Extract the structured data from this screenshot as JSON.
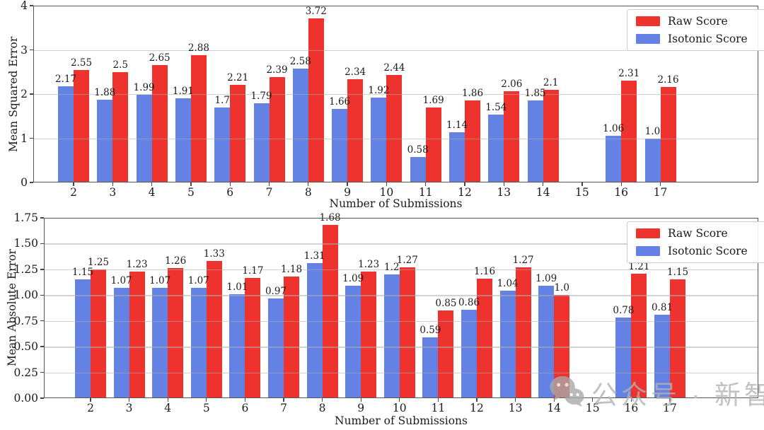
{
  "figure": {
    "background": "#ffffff"
  },
  "colors": {
    "raw": "#ee332e",
    "isotonic": "#6482e3",
    "grid": "#afafaf",
    "frame": "#555555",
    "text": "#1b1b1b",
    "legend_border": "#cccccc",
    "watermark": "#b3b3b3"
  },
  "watermark": {
    "icon": "wechat-icon",
    "text": "公众号 · 新智元"
  },
  "chart_data": [
    {
      "type": "bar",
      "title": "",
      "xlabel": "Number of Submissions",
      "ylabel": "Mean Squared Error",
      "categories": [
        "2",
        "3",
        "4",
        "5",
        "6",
        "7",
        "8",
        "9",
        "10",
        "11",
        "12",
        "13",
        "14",
        "15",
        "16",
        "17"
      ],
      "ylim": [
        0,
        4
      ],
      "yticks": [
        "0",
        "1",
        "2",
        "3",
        "4"
      ],
      "grid": true,
      "legend": {
        "position": "top-right",
        "entries": [
          {
            "label": "Raw Score",
            "color_key": "raw"
          },
          {
            "label": "Isotonic Score",
            "color_key": "isotonic"
          }
        ]
      },
      "series": [
        {
          "name": "Isotonic Score",
          "color_key": "isotonic",
          "values": [
            2.17,
            1.88,
            1.99,
            1.91,
            1.7,
            1.79,
            2.58,
            1.66,
            1.92,
            0.58,
            1.14,
            1.54,
            1.85,
            null,
            1.06,
            1.0
          ],
          "labels": [
            "2.17",
            "1.88",
            "1.99",
            "1.91",
            "1.7",
            "1.79",
            "2.58",
            "1.66",
            "1.92",
            "0.58",
            "1.14",
            "1.54",
            "1.85",
            "",
            "1.06",
            "1.0"
          ]
        },
        {
          "name": "Raw Score",
          "color_key": "raw",
          "values": [
            2.55,
            2.5,
            2.65,
            2.88,
            2.21,
            2.39,
            3.72,
            2.34,
            2.44,
            1.69,
            1.86,
            2.06,
            2.1,
            null,
            2.31,
            2.16
          ],
          "labels": [
            "2.55",
            "2.5",
            "2.65",
            "2.88",
            "2.21",
            "2.39",
            "3.72",
            "2.34",
            "2.44",
            "1.69",
            "1.86",
            "2.06",
            "2.1",
            "",
            "2.31",
            "2.16"
          ]
        }
      ]
    },
    {
      "type": "bar",
      "title": "",
      "xlabel": "Number of Submissions",
      "ylabel": "Mean Absolute Error",
      "categories": [
        "2",
        "3",
        "4",
        "5",
        "6",
        "7",
        "8",
        "9",
        "10",
        "11",
        "12",
        "13",
        "14",
        "15",
        "16",
        "17"
      ],
      "ylim": [
        0,
        1.75
      ],
      "yticks": [
        "0.00",
        "0.25",
        "0.50",
        "0.75",
        "1.00",
        "1.25",
        "1.50",
        "1.75"
      ],
      "grid": true,
      "legend": {
        "position": "top-right",
        "entries": [
          {
            "label": "Raw Score",
            "color_key": "raw"
          },
          {
            "label": "Isotonic Score",
            "color_key": "isotonic"
          }
        ]
      },
      "series": [
        {
          "name": "Isotonic Score",
          "color_key": "isotonic",
          "values": [
            1.15,
            1.07,
            1.07,
            1.07,
            1.01,
            0.97,
            1.31,
            1.09,
            1.2,
            0.59,
            0.86,
            1.04,
            1.09,
            null,
            0.78,
            0.81
          ],
          "labels": [
            "1.15",
            "1.07",
            "1.07",
            "1.07",
            "1.01",
            "0.97",
            "1.31",
            "1.09",
            "1.2",
            "0.59",
            "0.86",
            "1.04",
            "1.09",
            "",
            "0.78",
            "0.81"
          ]
        },
        {
          "name": "Raw Score",
          "color_key": "raw",
          "values": [
            1.25,
            1.23,
            1.26,
            1.33,
            1.17,
            1.18,
            1.68,
            1.23,
            1.27,
            0.85,
            1.16,
            1.27,
            1.0,
            null,
            1.21,
            1.15
          ],
          "labels": [
            "1.25",
            "1.23",
            "1.26",
            "1.33",
            "1.17",
            "1.18",
            "1.68",
            "1.23",
            "1.27",
            "0.85",
            "1.16",
            "1.27",
            "1.0",
            "",
            "1.21",
            "1.15"
          ]
        }
      ]
    }
  ]
}
